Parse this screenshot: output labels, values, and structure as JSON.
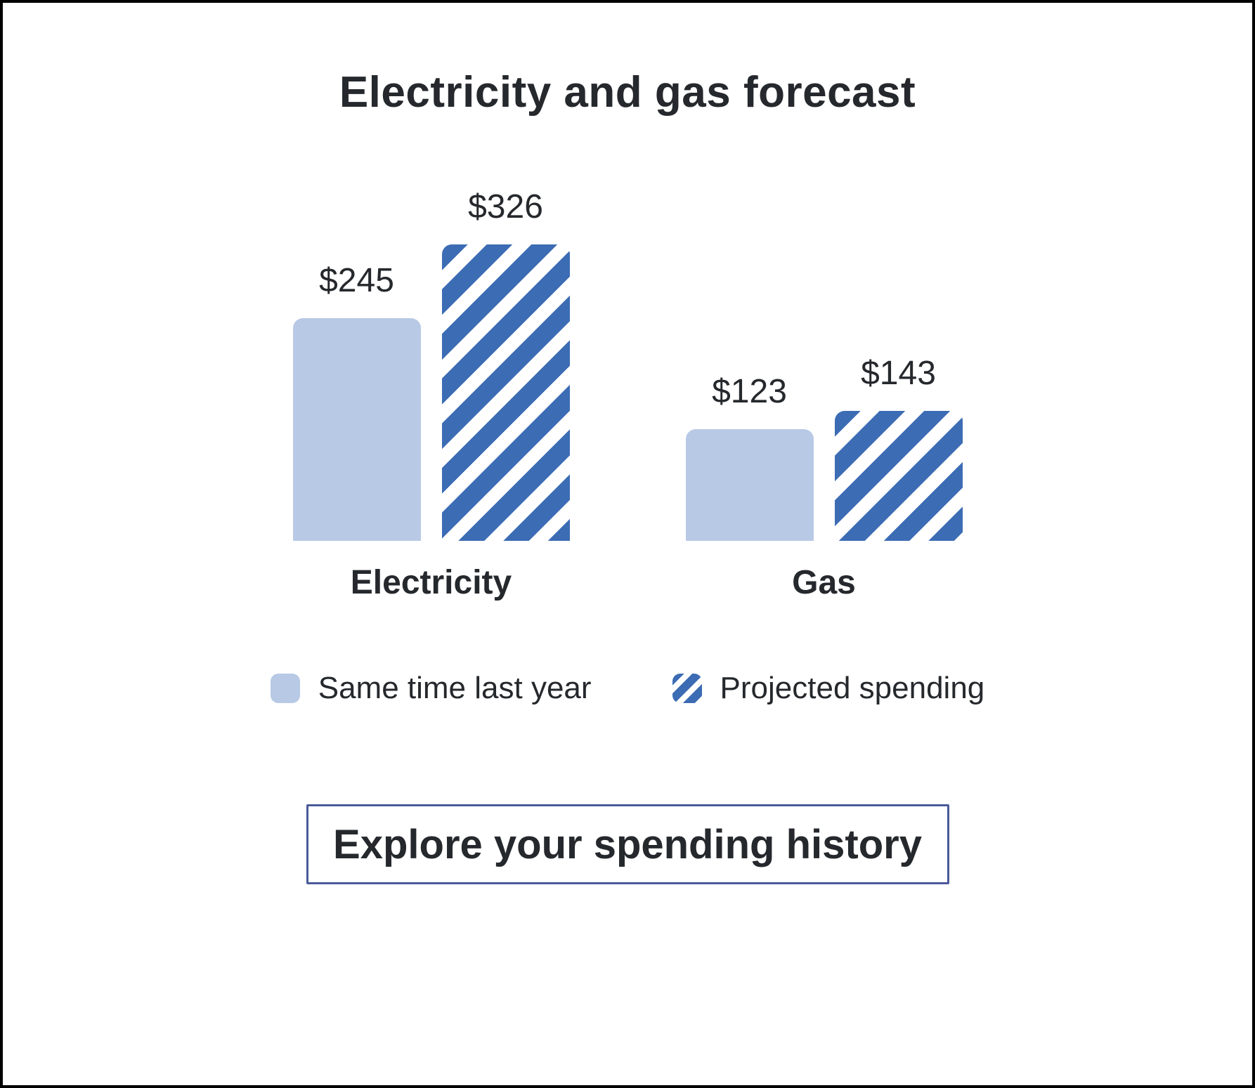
{
  "title": "Electricity and gas forecast",
  "chart_data": {
    "type": "bar",
    "title": "Electricity and gas forecast",
    "categories": [
      "Electricity",
      "Gas"
    ],
    "series": [
      {
        "name": "Same time last year",
        "values": [
          245,
          123
        ]
      },
      {
        "name": "Projected spending",
        "values": [
          326,
          143
        ]
      }
    ],
    "value_labels": [
      [
        "$245",
        "$326"
      ],
      [
        "$123",
        "$143"
      ]
    ],
    "ylim": [
      0,
      326
    ],
    "grid": false,
    "legend_position": "bottom",
    "colors": {
      "last_year": "#b8c9e6",
      "projected": "#3c6cb4"
    }
  },
  "button": {
    "label": "Explore your spending history",
    "border_color": "#4a5a9a"
  }
}
